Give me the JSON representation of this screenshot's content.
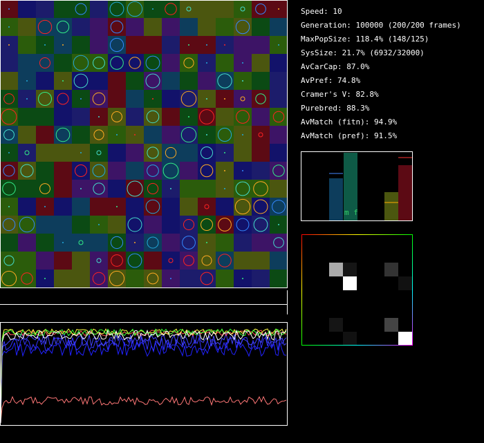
{
  "stats": [
    "Speed: 10",
    "Generation: 100000 (200/200 frames)",
    "MaxPopSize: 118.4% (148/125)",
    "SysSize: 21.7% (6932/32000)",
    "AvCarCap: 87.0%",
    "AvPref: 74.8%",
    "Cramer's V: 82.8%",
    "Purebred: 88.3%",
    "AvMatch (fitn): 94.9%",
    "AvMatch (pref): 91.5%"
  ],
  "bar_label": "m f"
}
